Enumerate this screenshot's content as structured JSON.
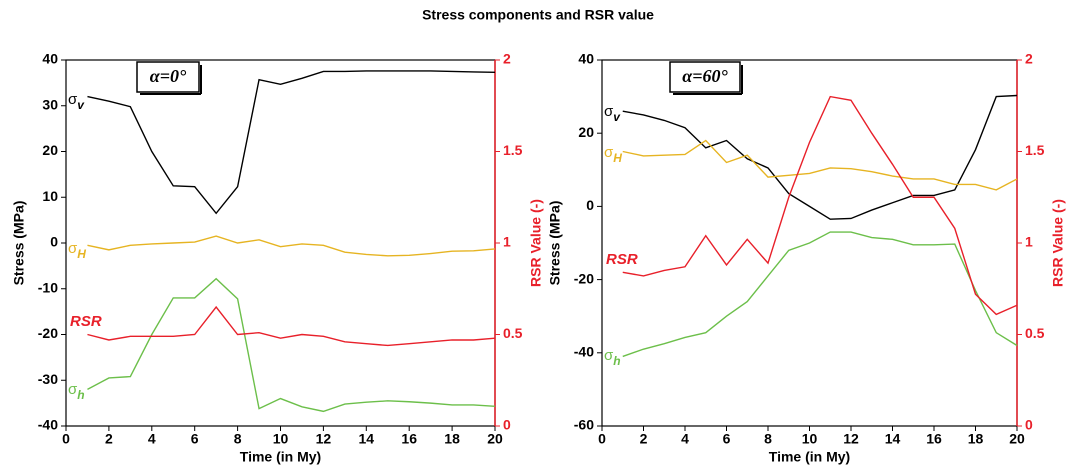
{
  "title": "Stress components and RSR value",
  "chart_data": [
    {
      "type": "line",
      "annotation": "α=0°",
      "xlabel": "Time (in My)",
      "ylabel": "Stress (MPa)",
      "y2label": "RSR Value (-)",
      "xlim": [
        0,
        20
      ],
      "xticks": [
        0,
        2,
        4,
        6,
        8,
        10,
        12,
        14,
        16,
        18,
        20
      ],
      "ylim": [
        -40,
        40
      ],
      "yticks": [
        -40,
        -30,
        -20,
        -10,
        0,
        10,
        20,
        30,
        40
      ],
      "y2lim": [
        0,
        2
      ],
      "y2ticks": [
        0,
        0.5,
        1,
        1.5,
        2
      ],
      "x": [
        1,
        2,
        3,
        4,
        5,
        6,
        7,
        8,
        9,
        10,
        11,
        12,
        13,
        14,
        15,
        16,
        17,
        18,
        19,
        20
      ],
      "series": [
        {
          "name": "σv",
          "color": "#000000",
          "values": [
            32,
            31,
            29.8,
            20,
            12.5,
            12.3,
            6.5,
            12.3,
            35.7,
            34.7,
            36,
            37.5,
            37.5,
            37.6,
            37.6,
            37.6,
            37.6,
            37.5,
            37.4,
            37.3
          ]
        },
        {
          "name": "σH",
          "color": "#e6b422",
          "values": [
            -0.5,
            -1.5,
            -0.5,
            -0.2,
            0,
            0.2,
            1.5,
            0,
            0.7,
            -0.8,
            -0.2,
            -0.5,
            -2,
            -2.5,
            -2.8,
            -2.7,
            -2.3,
            -1.8,
            -1.7,
            -1.3
          ]
        },
        {
          "name": "σh",
          "color": "#6cbf4a",
          "values": [
            -32,
            -29.5,
            -29.2,
            -20,
            -12,
            -12,
            -7.8,
            -12.2,
            -36.2,
            -34,
            -35.8,
            -36.8,
            -35.2,
            -34.8,
            -34.5,
            -34.7,
            -35,
            -35.4,
            -35.4,
            -35.7
          ]
        },
        {
          "name": "RSR",
          "color": "#e8202a",
          "axis": "y2",
          "values": [
            0.5,
            0.47,
            0.49,
            0.49,
            0.49,
            0.5,
            0.65,
            0.5,
            0.51,
            0.48,
            0.5,
            0.49,
            0.46,
            0.45,
            0.44,
            0.45,
            0.46,
            0.47,
            0.47,
            0.48
          ]
        }
      ]
    },
    {
      "type": "line",
      "annotation": "α=60°",
      "xlabel": "Time (in My)",
      "ylabel": "Stress (MPa)",
      "y2label": "RSR Value (-)",
      "xlim": [
        0,
        20
      ],
      "xticks": [
        0,
        2,
        4,
        6,
        8,
        10,
        12,
        14,
        16,
        18,
        20
      ],
      "ylim": [
        -60,
        40
      ],
      "yticks": [
        -60,
        -40,
        -20,
        0,
        20,
        40
      ],
      "y2lim": [
        0,
        2
      ],
      "y2ticks": [
        0,
        0.5,
        1,
        1.5,
        2
      ],
      "x": [
        1,
        2,
        3,
        4,
        5,
        6,
        7,
        8,
        9,
        10,
        11,
        12,
        13,
        14,
        15,
        16,
        17,
        18,
        19,
        20
      ],
      "series": [
        {
          "name": "σv",
          "color": "#000000",
          "values": [
            26,
            25,
            23.5,
            21.5,
            16,
            18,
            13,
            10.5,
            3.5,
            0,
            -3.5,
            -3.3,
            -1,
            1,
            3,
            3,
            4.5,
            15.5,
            30,
            30.3
          ]
        },
        {
          "name": "σH",
          "color": "#e6b422",
          "values": [
            15,
            13.8,
            14,
            14.2,
            18,
            12,
            14,
            8,
            8.5,
            9,
            10.5,
            10.3,
            9.5,
            8.3,
            7.5,
            7.5,
            6,
            6,
            4.5,
            7.5
          ]
        },
        {
          "name": "σh",
          "color": "#6cbf4a",
          "values": [
            -41,
            -39,
            -37.5,
            -35.8,
            -34.5,
            -30,
            -26,
            -19,
            -12,
            -10,
            -7,
            -7,
            -8.5,
            -9,
            -10.5,
            -10.5,
            -10.3,
            -23,
            -34.5,
            -38
          ]
        },
        {
          "name": "RSR",
          "color": "#e8202a",
          "axis": "y2",
          "values": [
            0.84,
            0.82,
            0.85,
            0.87,
            1.04,
            0.88,
            1.02,
            0.89,
            1.25,
            1.55,
            1.8,
            1.78,
            1.6,
            1.43,
            1.25,
            1.25,
            1.08,
            0.72,
            0.61,
            0.66
          ]
        }
      ]
    }
  ]
}
